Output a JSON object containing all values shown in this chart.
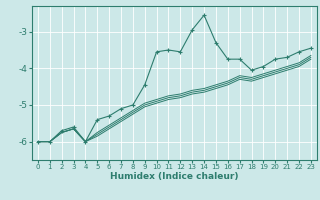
{
  "title": "",
  "xlabel": "Humidex (Indice chaleur)",
  "x": [
    0,
    1,
    2,
    3,
    4,
    5,
    6,
    7,
    8,
    9,
    10,
    11,
    12,
    13,
    14,
    15,
    16,
    17,
    18,
    19,
    20,
    21,
    22,
    23
  ],
  "line1": [
    -6.0,
    -6.0,
    -5.7,
    -5.6,
    -6.0,
    -5.4,
    -5.3,
    -5.1,
    -5.0,
    -4.45,
    -3.55,
    -3.5,
    -3.55,
    -2.95,
    -2.55,
    -3.3,
    -3.75,
    -3.75,
    -4.05,
    -3.95,
    -3.75,
    -3.7,
    -3.55,
    -3.45
  ],
  "line2": [
    -6.0,
    -6.0,
    -5.75,
    -5.65,
    -6.0,
    -5.75,
    -5.55,
    -5.35,
    -5.15,
    -4.95,
    -4.85,
    -4.75,
    -4.7,
    -4.6,
    -4.55,
    -4.45,
    -4.35,
    -4.2,
    -4.25,
    -4.15,
    -4.05,
    -3.95,
    -3.85,
    -3.65
  ],
  "line3": [
    -6.0,
    -6.0,
    -5.75,
    -5.65,
    -6.0,
    -5.8,
    -5.6,
    -5.4,
    -5.2,
    -5.0,
    -4.9,
    -4.8,
    -4.75,
    -4.65,
    -4.6,
    -4.5,
    -4.4,
    -4.25,
    -4.3,
    -4.2,
    -4.1,
    -4.0,
    -3.9,
    -3.7
  ],
  "line4": [
    -6.0,
    -6.0,
    -5.75,
    -5.65,
    -6.0,
    -5.85,
    -5.65,
    -5.45,
    -5.25,
    -5.05,
    -4.95,
    -4.85,
    -4.8,
    -4.7,
    -4.65,
    -4.55,
    -4.45,
    -4.3,
    -4.35,
    -4.25,
    -4.15,
    -4.05,
    -3.95,
    -3.75
  ],
  "bg_color": "#cce8e8",
  "line_color": "#2e7d6e",
  "grid_color": "#ffffff",
  "yticks": [
    -6,
    -5,
    -4,
    -3
  ],
  "ylim": [
    -6.5,
    -2.3
  ],
  "xlim": [
    -0.5,
    23.5
  ]
}
